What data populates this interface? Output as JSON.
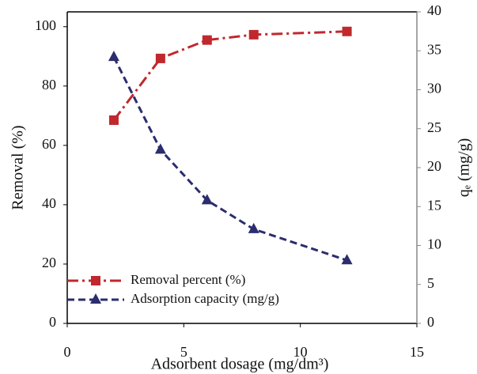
{
  "chart_data": {
    "type": "line",
    "x_label": "Adsorbent dosage (mg/dm³)",
    "y_label": "Removal (%)",
    "y2_label": "qₑ (mg/g)",
    "x": [
      2,
      4,
      6,
      8,
      12
    ],
    "series": [
      {
        "name": "Removal percent (%)",
        "color": "#c0282d",
        "marker": "square",
        "linestyle": "dashdot",
        "values": [
          68.5,
          89.3,
          95.5,
          97.3,
          98.4
        ]
      },
      {
        "name": "Adsorption capacity (mg/g)",
        "color": "#2b2d6e",
        "marker": "triangle",
        "linestyle": "dashed",
        "axis": "y2",
        "values": [
          34.2,
          22.3,
          15.8,
          12.1,
          8.1
        ]
      }
    ],
    "xlim": [
      0,
      15
    ],
    "xticks": [
      0,
      5,
      10,
      15
    ],
    "ylim": [
      0,
      105
    ],
    "yticks": [
      0,
      20,
      40,
      60,
      80,
      100
    ],
    "y2lim": [
      0,
      40
    ],
    "y2ticks": [
      0,
      5,
      10,
      15,
      20,
      25,
      30,
      35,
      40
    ],
    "grid": false,
    "legend": "lower left"
  }
}
